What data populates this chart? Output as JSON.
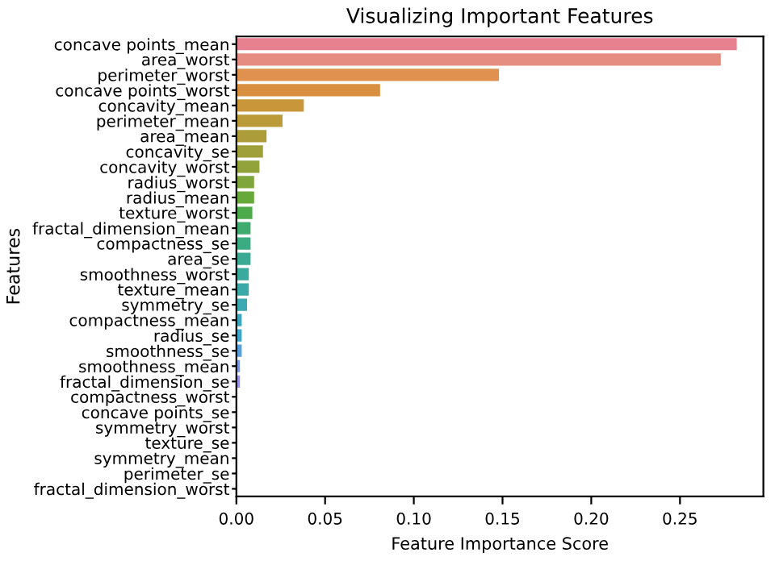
{
  "chart_data": {
    "type": "bar",
    "orientation": "horizontal",
    "title": "Visualizing Important Features",
    "xlabel": "Feature Importance Score",
    "ylabel": "Features",
    "categories": [
      "concave points_mean",
      "area_worst",
      "perimeter_worst",
      "concave points_worst",
      "concavity_mean",
      "perimeter_mean",
      "area_mean",
      "concavity_se",
      "concavity_worst",
      "radius_worst",
      "radius_mean",
      "texture_worst",
      "fractal_dimension_mean",
      "compactness_se",
      "area_se",
      "smoothness_worst",
      "texture_mean",
      "symmetry_se",
      "compactness_mean",
      "radius_se",
      "smoothness_se",
      "smoothness_mean",
      "fractal_dimension_se",
      "compactness_worst",
      "concave points_se",
      "symmetry_worst",
      "texture_se",
      "symmetry_mean",
      "perimeter_se",
      "fractal_dimension_worst"
    ],
    "values": [
      0.282,
      0.273,
      0.148,
      0.081,
      0.038,
      0.026,
      0.017,
      0.015,
      0.013,
      0.01,
      0.01,
      0.009,
      0.008,
      0.008,
      0.008,
      0.007,
      0.007,
      0.006,
      0.003,
      0.003,
      0.003,
      0.002,
      0.002,
      0,
      0,
      0,
      0,
      0,
      0,
      0
    ],
    "colors": [
      "#e7818f",
      "#e58d80",
      "#e0904f",
      "#d89040",
      "#c9963a",
      "#bb9a3a",
      "#ad9d3a",
      "#9fa03a",
      "#91a33a",
      "#7fa63a",
      "#66a93a",
      "#4daa4a",
      "#3fab6e",
      "#3aab82",
      "#3aab92",
      "#3aaa9e",
      "#3aa9a8",
      "#3ba8b2",
      "#3da6bd",
      "#40a3c9",
      "#5a9fd8",
      "#7e99e2",
      "#9a94e6",
      null,
      null,
      null,
      null,
      null,
      null,
      null
    ],
    "xlim": [
      0,
      0.297
    ],
    "xticks": [
      {
        "value": 0,
        "label": "0.00"
      },
      {
        "value": 0.05,
        "label": "0.05"
      },
      {
        "value": 0.1,
        "label": "0.10"
      },
      {
        "value": 0.15,
        "label": "0.15"
      },
      {
        "value": 0.2,
        "label": "0.20"
      },
      {
        "value": 0.25,
        "label": "0.25"
      }
    ],
    "grid": false
  }
}
